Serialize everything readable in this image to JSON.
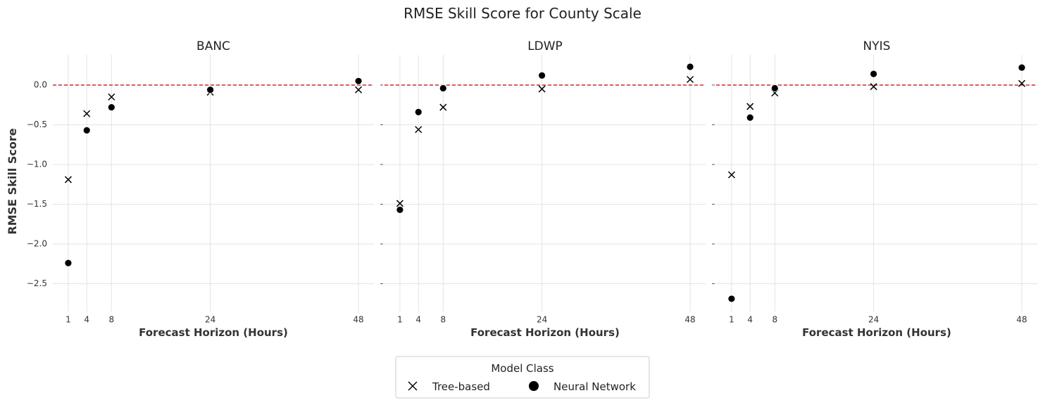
{
  "chart_data": {
    "type": "scatter",
    "title": "RMSE Skill Score for County Scale",
    "ylabel": "RMSE Skill Score",
    "xlabel": "Forecast Horizon (Hours)",
    "x_ticks": [
      1,
      4,
      8,
      24,
      48
    ],
    "y_ticks": [
      0.0,
      -0.5,
      -1.0,
      -1.5,
      -2.0,
      -2.5
    ],
    "y_tick_labels": [
      "0.0",
      "−0.5",
      "−1.0",
      "−1.5",
      "−2.0",
      "−2.5"
    ],
    "xlim": [
      -1.5,
      50.5
    ],
    "ylim": [
      -2.85,
      0.38
    ],
    "grid": true,
    "reference_line": {
      "y": 0,
      "color": "#d62728",
      "style": "dashed"
    },
    "legend": {
      "title": "Model Class",
      "placement": "bottom-center",
      "entries": [
        {
          "label": "Tree-based",
          "marker": "x"
        },
        {
          "label": "Neural Network",
          "marker": "circle"
        }
      ]
    },
    "panels": [
      {
        "title": "BANC",
        "series": [
          {
            "name": "Tree-based",
            "x": [
              1,
              4,
              8,
              24,
              48
            ],
            "y": [
              -1.19,
              -0.36,
              -0.15,
              -0.09,
              -0.06
            ]
          },
          {
            "name": "Neural Network",
            "x": [
              1,
              4,
              8,
              24,
              48
            ],
            "y": [
              -2.24,
              -0.57,
              -0.28,
              -0.06,
              0.05
            ]
          }
        ]
      },
      {
        "title": "LDWP",
        "series": [
          {
            "name": "Tree-based",
            "x": [
              1,
              4,
              8,
              24,
              48
            ],
            "y": [
              -1.49,
              -0.56,
              -0.28,
              -0.05,
              0.07
            ]
          },
          {
            "name": "Neural Network",
            "x": [
              1,
              4,
              8,
              24,
              48
            ],
            "y": [
              -1.57,
              -0.34,
              -0.04,
              0.12,
              0.23
            ]
          }
        ]
      },
      {
        "title": "NYIS",
        "series": [
          {
            "name": "Tree-based",
            "x": [
              1,
              4,
              8,
              24,
              48
            ],
            "y": [
              -1.13,
              -0.27,
              -0.1,
              -0.02,
              0.02
            ]
          },
          {
            "name": "Neural Network",
            "x": [
              1,
              4,
              8,
              24,
              48
            ],
            "y": [
              -2.69,
              -0.41,
              -0.04,
              0.14,
              0.22
            ]
          }
        ]
      }
    ]
  }
}
